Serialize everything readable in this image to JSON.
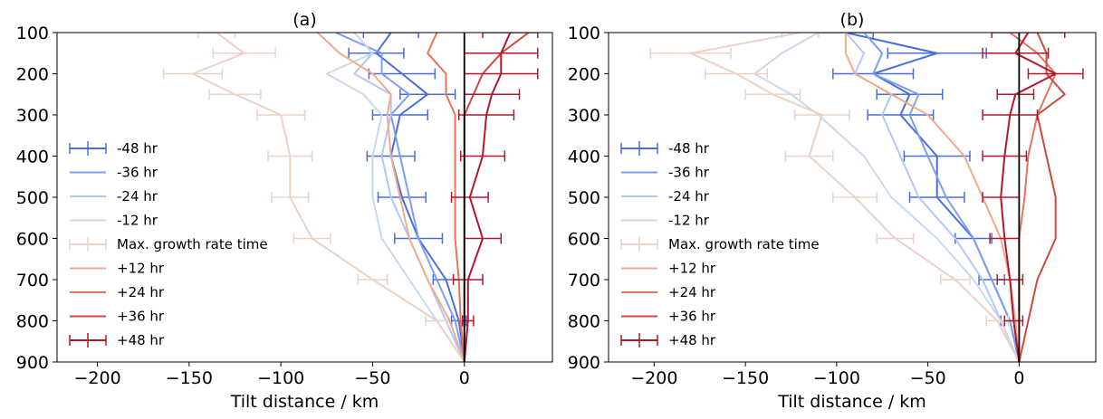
{
  "chart_data": [
    {
      "type": "line",
      "title": "(a)",
      "xlabel": "Tilt distance / km",
      "ylabel": "",
      "xlim": [
        -222,
        48
      ],
      "ylim": [
        900,
        100
      ],
      "y_axis_inverted": true,
      "xticks": [
        -200,
        -150,
        -100,
        -50,
        0
      ],
      "xtick_labels": [
        "−200",
        "−150",
        "−100",
        "−50",
        "0"
      ],
      "yticks": [
        100,
        200,
        300,
        400,
        500,
        600,
        700,
        800,
        900
      ],
      "ytick_labels": [
        "100",
        "200",
        "300",
        "400",
        "500",
        "600",
        "700",
        "800",
        "900"
      ],
      "reference_line_x": 0,
      "legend_position": "center-left",
      "y": [
        100,
        150,
        200,
        250,
        300,
        400,
        500,
        600,
        700,
        800,
        900
      ],
      "series": [
        {
          "name": "-48 hr",
          "color": "#4a6ddc",
          "error_bars": true,
          "x": [
            -40,
            -48,
            -34,
            -20,
            -35,
            -40,
            -34,
            -25,
            -10,
            -3,
            0
          ],
          "xerr": [
            15,
            15,
            18,
            15,
            15,
            13,
            13,
            13,
            7,
            4,
            0
          ]
        },
        {
          "name": "-36 hr",
          "color": "#7c9ef2",
          "error_bars": false,
          "x": [
            -70,
            -45,
            -45,
            -30,
            -40,
            -35,
            -30,
            -25,
            -15,
            -5,
            0
          ]
        },
        {
          "name": "-24 hr",
          "color": "#aec8f9",
          "error_bars": false,
          "x": [
            -60,
            -50,
            -60,
            -40,
            -40,
            -45,
            -40,
            -30,
            -20,
            -10,
            0
          ]
        },
        {
          "name": "-12 hr",
          "color": "#cad8ed",
          "error_bars": false,
          "x": [
            -60,
            -50,
            -75,
            -55,
            -45,
            -50,
            -50,
            -45,
            -30,
            -15,
            0
          ]
        },
        {
          "name": "Max. growth rate time",
          "color": "#ebd2c6",
          "error_bars": true,
          "x": [
            -135,
            -120,
            -148,
            -125,
            -100,
            -95,
            -95,
            -83,
            -50,
            -15,
            0
          ],
          "xerr": [
            10,
            17,
            16,
            14,
            13,
            12,
            10,
            10,
            8,
            6,
            0
          ]
        },
        {
          "name": "+12 hr",
          "color": "#f3a98a",
          "error_bars": false,
          "x": [
            -80,
            -68,
            -50,
            -40,
            -42,
            -40,
            -35,
            -30,
            -20,
            -8,
            0
          ]
        },
        {
          "name": "+24 hr",
          "color": "#e6745d",
          "error_bars": false,
          "x": [
            -15,
            -20,
            -10,
            -10,
            -5,
            -5,
            -5,
            -5,
            -3,
            -2,
            0
          ]
        },
        {
          "name": "+36 hr",
          "color": "#ce4a40",
          "error_bars": false,
          "x": [
            35,
            20,
            10,
            5,
            0,
            0,
            0,
            0,
            0,
            0,
            0
          ]
        },
        {
          "name": "+48 hr",
          "color": "#b2182b",
          "error_bars": true,
          "x": [
            25,
            20,
            20,
            15,
            12,
            10,
            3,
            10,
            2,
            2,
            0
          ],
          "xerr": [
            15,
            20,
            20,
            15,
            15,
            12,
            10,
            10,
            8,
            3,
            0
          ]
        }
      ]
    },
    {
      "type": "line",
      "title": "(b)",
      "xlabel": "Tilt distance / km",
      "ylabel": "",
      "xlim": [
        -225,
        42
      ],
      "ylim": [
        900,
        100
      ],
      "y_axis_inverted": true,
      "xticks": [
        -200,
        -150,
        -100,
        -50,
        0
      ],
      "xtick_labels": [
        "−200",
        "−150",
        "−100",
        "−50",
        "0"
      ],
      "yticks": [
        100,
        200,
        300,
        400,
        500,
        600,
        700,
        800,
        900
      ],
      "ytick_labels": [
        "100",
        "200",
        "300",
        "400",
        "500",
        "600",
        "700",
        "800",
        "900"
      ],
      "reference_line_x": 0,
      "legend_position": "center-left",
      "y": [
        100,
        150,
        200,
        250,
        300,
        400,
        500,
        600,
        700,
        800,
        900
      ],
      "series": [
        {
          "name": "-48 hr",
          "color": "#4a6ddc",
          "error_bars": true,
          "x": [
            -95,
            -45,
            -80,
            -60,
            -65,
            -45,
            -45,
            -25,
            -15,
            -5,
            0
          ],
          "xerr": [
            15,
            27,
            22,
            18,
            18,
            18,
            15,
            10,
            7,
            5,
            0
          ]
        },
        {
          "name": "-36 hr",
          "color": "#7c9ef2",
          "error_bars": false,
          "x": [
            -85,
            -75,
            -80,
            -55,
            -60,
            -50,
            -40,
            -25,
            -15,
            -5,
            0
          ]
        },
        {
          "name": "-24 hr",
          "color": "#aec8f9",
          "error_bars": false,
          "x": [
            -95,
            -85,
            -90,
            -70,
            -75,
            -65,
            -55,
            -35,
            -20,
            -10,
            0
          ]
        },
        {
          "name": "-12 hr",
          "color": "#cad8ed",
          "error_bars": false,
          "x": [
            -110,
            -130,
            -145,
            -125,
            -110,
            -85,
            -70,
            -45,
            -25,
            -10,
            0
          ]
        },
        {
          "name": "Max. growth rate time",
          "color": "#ebd2c6",
          "error_bars": true,
          "x": [
            -120,
            -180,
            -155,
            -135,
            -108,
            -115,
            -90,
            -68,
            -35,
            -12,
            0
          ],
          "xerr": [
            10,
            22,
            17,
            15,
            15,
            13,
            12,
            10,
            8,
            6,
            0
          ]
        },
        {
          "name": "+12 hr",
          "color": "#f3a98a",
          "error_bars": false,
          "x": [
            -95,
            -95,
            -90,
            -70,
            -50,
            -30,
            -20,
            -10,
            -5,
            -2,
            0
          ]
        },
        {
          "name": "+24 hr",
          "color": "#e6745d",
          "error_bars": false,
          "x": [
            -5,
            10,
            20,
            15,
            10,
            5,
            3,
            0,
            0,
            0,
            0
          ]
        },
        {
          "name": "+36 hr",
          "color": "#ce4a40",
          "error_bars": false,
          "x": [
            10,
            15,
            15,
            25,
            10,
            15,
            20,
            20,
            10,
            5,
            0
          ]
        },
        {
          "name": "+48 hr",
          "color": "#b2182b",
          "error_bars": true,
          "x": [
            5,
            -2,
            20,
            -2,
            -5,
            -8,
            -10,
            -8,
            -5,
            -3,
            0
          ],
          "xerr": [
            20,
            18,
            15,
            10,
            15,
            12,
            10,
            8,
            7,
            5,
            0
          ]
        }
      ]
    }
  ]
}
